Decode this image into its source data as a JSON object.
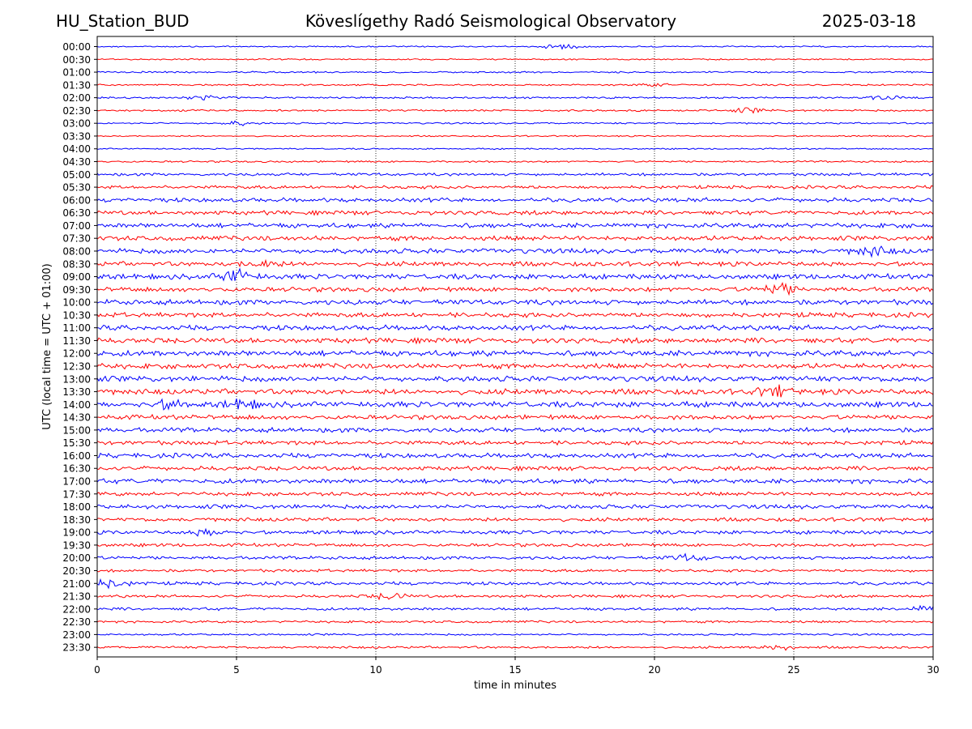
{
  "header": {
    "station": "HU_Station_BUD",
    "title": "Köveslígethy Radó Seismological Observatory",
    "date": "2025-03-18"
  },
  "chart_data": {
    "type": "line",
    "title": "Köveslígethy Radó Seismological Observatory",
    "xlabel": "time in minutes",
    "ylabel": "UTC (local time = UTC + 01:00)",
    "xlim": [
      0,
      30
    ],
    "xticks": [
      0,
      5,
      10,
      15,
      20,
      25,
      30
    ],
    "grid": "vertical dotted at x ticks",
    "trace_colors": [
      "#0000ff",
      "#ff0000"
    ],
    "rows": [
      {
        "label": "00:00",
        "amplitude": 0.15,
        "events": [
          {
            "t": 16.6,
            "amp": 0.5
          }
        ]
      },
      {
        "label": "00:30",
        "amplitude": 0.15,
        "events": []
      },
      {
        "label": "01:00",
        "amplitude": 0.18,
        "events": []
      },
      {
        "label": "01:30",
        "amplitude": 0.18,
        "events": [
          {
            "t": 20.0,
            "amp": 0.4
          }
        ]
      },
      {
        "label": "02:00",
        "amplitude": 0.2,
        "events": [
          {
            "t": 4.0,
            "amp": 0.55
          },
          {
            "t": 28.2,
            "amp": 0.4
          }
        ]
      },
      {
        "label": "02:30",
        "amplitude": 0.2,
        "events": [
          {
            "t": 23.4,
            "amp": 0.45
          }
        ]
      },
      {
        "label": "03:00",
        "amplitude": 0.18,
        "events": [
          {
            "t": 5.0,
            "amp": 0.4
          }
        ]
      },
      {
        "label": "03:30",
        "amplitude": 0.15,
        "events": []
      },
      {
        "label": "04:00",
        "amplitude": 0.15,
        "events": []
      },
      {
        "label": "04:30",
        "amplitude": 0.2,
        "events": []
      },
      {
        "label": "05:00",
        "amplitude": 0.3,
        "events": []
      },
      {
        "label": "05:30",
        "amplitude": 0.35,
        "events": []
      },
      {
        "label": "06:00",
        "amplitude": 0.45,
        "events": []
      },
      {
        "label": "06:30",
        "amplitude": 0.45,
        "events": []
      },
      {
        "label": "07:00",
        "amplitude": 0.5,
        "events": []
      },
      {
        "label": "07:30",
        "amplitude": 0.5,
        "events": []
      },
      {
        "label": "08:00",
        "amplitude": 0.55,
        "events": [
          {
            "t": 27.8,
            "amp": 0.8
          }
        ]
      },
      {
        "label": "08:30",
        "amplitude": 0.5,
        "events": [
          {
            "t": 5.8,
            "amp": 0.8
          }
        ]
      },
      {
        "label": "09:00",
        "amplitude": 0.55,
        "events": [
          {
            "t": 5.0,
            "amp": 1.4
          }
        ]
      },
      {
        "label": "09:30",
        "amplitude": 0.5,
        "events": [
          {
            "t": 24.5,
            "amp": 1.1
          }
        ]
      },
      {
        "label": "10:00",
        "amplitude": 0.55,
        "events": []
      },
      {
        "label": "10:30",
        "amplitude": 0.5,
        "events": []
      },
      {
        "label": "11:00",
        "amplitude": 0.55,
        "events": []
      },
      {
        "label": "11:30",
        "amplitude": 0.55,
        "events": []
      },
      {
        "label": "12:00",
        "amplitude": 0.6,
        "events": []
      },
      {
        "label": "12:30",
        "amplitude": 0.55,
        "events": []
      },
      {
        "label": "13:00",
        "amplitude": 0.6,
        "events": []
      },
      {
        "label": "13:30",
        "amplitude": 0.6,
        "events": [
          {
            "t": 24.3,
            "amp": 0.9
          }
        ]
      },
      {
        "label": "14:00",
        "amplitude": 0.6,
        "events": [
          {
            "t": 2.6,
            "amp": 0.8
          },
          {
            "t": 5.2,
            "amp": 0.8
          }
        ]
      },
      {
        "label": "14:30",
        "amplitude": 0.5,
        "events": []
      },
      {
        "label": "15:00",
        "amplitude": 0.5,
        "events": []
      },
      {
        "label": "15:30",
        "amplitude": 0.45,
        "events": []
      },
      {
        "label": "16:00",
        "amplitude": 0.5,
        "events": []
      },
      {
        "label": "16:30",
        "amplitude": 0.45,
        "events": []
      },
      {
        "label": "17:00",
        "amplitude": 0.5,
        "events": []
      },
      {
        "label": "17:30",
        "amplitude": 0.4,
        "events": []
      },
      {
        "label": "18:00",
        "amplitude": 0.45,
        "events": []
      },
      {
        "label": "18:30",
        "amplitude": 0.4,
        "events": []
      },
      {
        "label": "19:00",
        "amplitude": 0.4,
        "events": [
          {
            "t": 4.0,
            "amp": 0.6
          }
        ]
      },
      {
        "label": "19:30",
        "amplitude": 0.35,
        "events": []
      },
      {
        "label": "20:00",
        "amplitude": 0.35,
        "events": [
          {
            "t": 21.2,
            "amp": 0.6
          }
        ]
      },
      {
        "label": "20:30",
        "amplitude": 0.3,
        "events": []
      },
      {
        "label": "21:00",
        "amplitude": 0.35,
        "events": [
          {
            "t": 0.5,
            "amp": 0.9
          }
        ]
      },
      {
        "label": "21:30",
        "amplitude": 0.3,
        "events": [
          {
            "t": 10.5,
            "amp": 0.6
          }
        ]
      },
      {
        "label": "22:00",
        "amplitude": 0.3,
        "events": [
          {
            "t": 29.8,
            "amp": 0.6
          }
        ]
      },
      {
        "label": "22:30",
        "amplitude": 0.25,
        "events": []
      },
      {
        "label": "23:00",
        "amplitude": 0.2,
        "events": []
      },
      {
        "label": "23:30",
        "amplitude": 0.25,
        "events": [
          {
            "t": 24.5,
            "amp": 0.5
          }
        ]
      }
    ]
  }
}
